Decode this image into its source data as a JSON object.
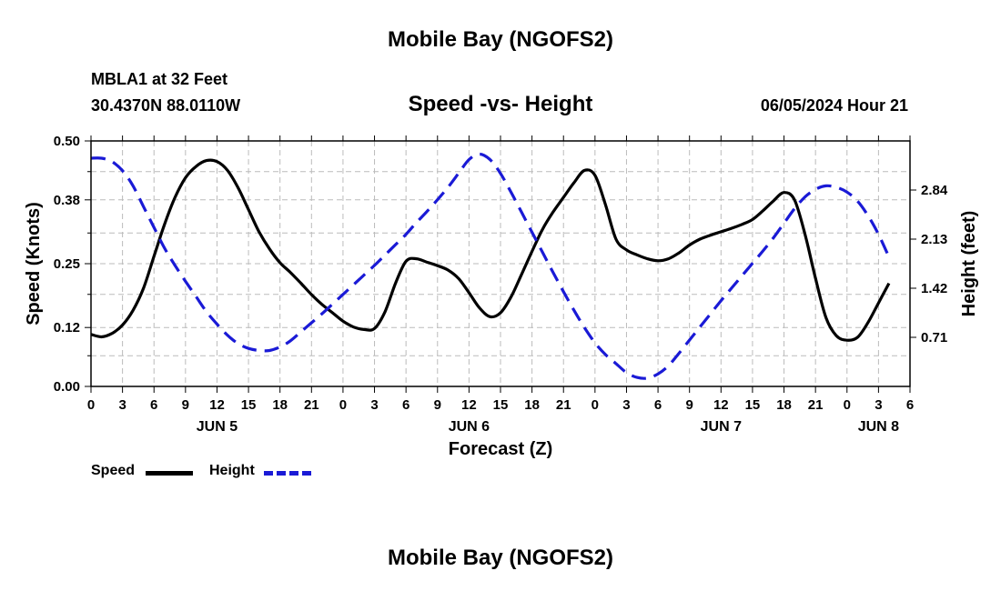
{
  "header": {
    "title": "Mobile Bay (NGOFS2)",
    "station": "MBLA1 at 32 Feet",
    "coordinates": "30.4370N  88.0110W",
    "timestamp": "06/05/2024 Hour 21"
  },
  "footer": {
    "title": "Mobile Bay (NGOFS2)"
  },
  "colors": {
    "speed": "#000000",
    "height": "#1a1ad6",
    "grid": "#bbbbbb"
  },
  "chart_data": {
    "type": "line",
    "title": "Speed -vs- Height",
    "xlabel": "Forecast (Z)",
    "ylabel": "Speed (Knots)",
    "y2label": "Height (feet)",
    "x_range_hours": [
      0,
      78
    ],
    "x_tick_labels": [
      "0",
      "3",
      "6",
      "9",
      "12",
      "15",
      "18",
      "21",
      "0",
      "3",
      "6",
      "9",
      "12",
      "15",
      "18",
      "21",
      "0",
      "3",
      "6",
      "9",
      "12",
      "15",
      "18",
      "21",
      "0",
      "3",
      "6"
    ],
    "day_labels": [
      {
        "label": "JUN 5",
        "hour": 12
      },
      {
        "label": "JUN 6",
        "hour": 36
      },
      {
        "label": "JUN 7",
        "hour": 60
      },
      {
        "label": "JUN 8",
        "hour": 75
      }
    ],
    "ylim": [
      0,
      0.5
    ],
    "y_ticks": [
      "0.00",
      "0.12",
      "0.25",
      "0.38",
      "0.50"
    ],
    "y2lim": [
      0,
      3.55
    ],
    "y2_ticks": [
      "0.71",
      "1.42",
      "2.13",
      "2.84"
    ],
    "grid": true,
    "legend_position": "bottom-left",
    "series": [
      {
        "name": "Speed",
        "axis": "left",
        "style": "solid",
        "points": [
          [
            0,
            0.106
          ],
          [
            1,
            0.101
          ],
          [
            2,
            0.108
          ],
          [
            3,
            0.125
          ],
          [
            4,
            0.155
          ],
          [
            5,
            0.2
          ],
          [
            6,
            0.265
          ],
          [
            7,
            0.33
          ],
          [
            8,
            0.385
          ],
          [
            9,
            0.425
          ],
          [
            10,
            0.448
          ],
          [
            11,
            0.46
          ],
          [
            12,
            0.458
          ],
          [
            13,
            0.44
          ],
          [
            14,
            0.405
          ],
          [
            15,
            0.36
          ],
          [
            16,
            0.315
          ],
          [
            17,
            0.28
          ],
          [
            18,
            0.252
          ],
          [
            19,
            0.232
          ],
          [
            20,
            0.21
          ],
          [
            21,
            0.187
          ],
          [
            22,
            0.167
          ],
          [
            23,
            0.15
          ],
          [
            24,
            0.133
          ],
          [
            25,
            0.121
          ],
          [
            26,
            0.116
          ],
          [
            27,
            0.118
          ],
          [
            28,
            0.152
          ],
          [
            29,
            0.21
          ],
          [
            30,
            0.255
          ],
          [
            31,
            0.26
          ],
          [
            32,
            0.253
          ],
          [
            33,
            0.246
          ],
          [
            34,
            0.237
          ],
          [
            35,
            0.22
          ],
          [
            36,
            0.191
          ],
          [
            37,
            0.16
          ],
          [
            38,
            0.142
          ],
          [
            39,
            0.15
          ],
          [
            40,
            0.182
          ],
          [
            41,
            0.228
          ],
          [
            42,
            0.275
          ],
          [
            43,
            0.32
          ],
          [
            44,
            0.355
          ],
          [
            45,
            0.385
          ],
          [
            46,
            0.415
          ],
          [
            47,
            0.44
          ],
          [
            48,
            0.43
          ],
          [
            49,
            0.37
          ],
          [
            50,
            0.3
          ],
          [
            51,
            0.278
          ],
          [
            52,
            0.268
          ],
          [
            53,
            0.26
          ],
          [
            54,
            0.256
          ],
          [
            55,
            0.26
          ],
          [
            56,
            0.272
          ],
          [
            57,
            0.288
          ],
          [
            58,
            0.3
          ],
          [
            59,
            0.308
          ],
          [
            60,
            0.315
          ],
          [
            61,
            0.322
          ],
          [
            62,
            0.33
          ],
          [
            63,
            0.34
          ],
          [
            64,
            0.358
          ],
          [
            65,
            0.378
          ],
          [
            66,
            0.395
          ],
          [
            67,
            0.38
          ],
          [
            68,
            0.31
          ],
          [
            69,
            0.22
          ],
          [
            70,
            0.14
          ],
          [
            71,
            0.103
          ],
          [
            72,
            0.094
          ],
          [
            73,
            0.1
          ],
          [
            74,
            0.13
          ],
          [
            75,
            0.17
          ],
          [
            76,
            0.21
          ]
        ]
      },
      {
        "name": "Height",
        "axis": "right",
        "style": "dashed",
        "points": [
          [
            0,
            3.3
          ],
          [
            1,
            3.3
          ],
          [
            2,
            3.25
          ],
          [
            3,
            3.12
          ],
          [
            4,
            2.9
          ],
          [
            5,
            2.6
          ],
          [
            6,
            2.3
          ],
          [
            7,
            2.0
          ],
          [
            8,
            1.75
          ],
          [
            9,
            1.52
          ],
          [
            10,
            1.3
          ],
          [
            11,
            1.08
          ],
          [
            12,
            0.9
          ],
          [
            13,
            0.74
          ],
          [
            14,
            0.62
          ],
          [
            15,
            0.55
          ],
          [
            16,
            0.52
          ],
          [
            17,
            0.52
          ],
          [
            18,
            0.57
          ],
          [
            19,
            0.66
          ],
          [
            20,
            0.79
          ],
          [
            21,
            0.92
          ],
          [
            22,
            1.05
          ],
          [
            23,
            1.19
          ],
          [
            24,
            1.33
          ],
          [
            25,
            1.47
          ],
          [
            26,
            1.61
          ],
          [
            27,
            1.75
          ],
          [
            28,
            1.9
          ],
          [
            29,
            2.05
          ],
          [
            30,
            2.2
          ],
          [
            31,
            2.37
          ],
          [
            32,
            2.53
          ],
          [
            33,
            2.7
          ],
          [
            34,
            2.88
          ],
          [
            35,
            3.08
          ],
          [
            36,
            3.28
          ],
          [
            37,
            3.36
          ],
          [
            38,
            3.28
          ],
          [
            39,
            3.08
          ],
          [
            40,
            2.81
          ],
          [
            41,
            2.52
          ],
          [
            42,
            2.23
          ],
          [
            43,
            1.94
          ],
          [
            44,
            1.65
          ],
          [
            45,
            1.37
          ],
          [
            46,
            1.1
          ],
          [
            47,
            0.85
          ],
          [
            48,
            0.63
          ],
          [
            49,
            0.46
          ],
          [
            50,
            0.33
          ],
          [
            51,
            0.2
          ],
          [
            52,
            0.13
          ],
          [
            53,
            0.12
          ],
          [
            54,
            0.18
          ],
          [
            55,
            0.3
          ],
          [
            56,
            0.48
          ],
          [
            57,
            0.67
          ],
          [
            58,
            0.86
          ],
          [
            59,
            1.05
          ],
          [
            60,
            1.24
          ],
          [
            61,
            1.42
          ],
          [
            62,
            1.6
          ],
          [
            63,
            1.78
          ],
          [
            64,
            1.96
          ],
          [
            65,
            2.15
          ],
          [
            66,
            2.36
          ],
          [
            67,
            2.57
          ],
          [
            68,
            2.74
          ],
          [
            69,
            2.85
          ],
          [
            70,
            2.9
          ],
          [
            71,
            2.88
          ],
          [
            72,
            2.81
          ],
          [
            73,
            2.68
          ],
          [
            74,
            2.47
          ],
          [
            75,
            2.2
          ],
          [
            76,
            1.87
          ]
        ]
      }
    ]
  }
}
